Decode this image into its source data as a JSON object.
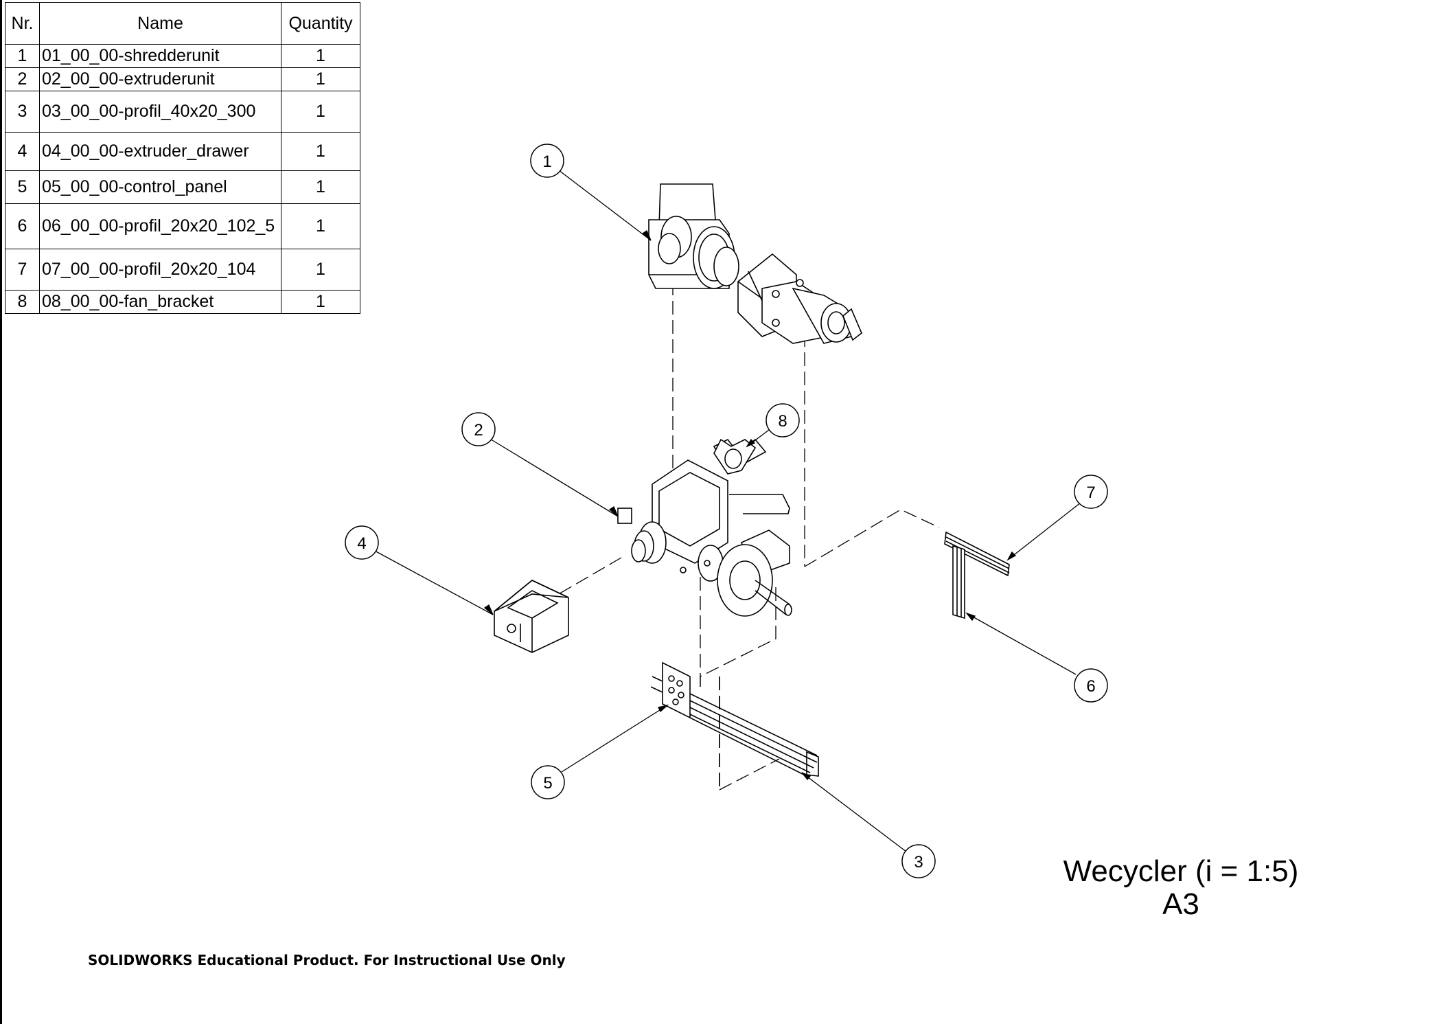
{
  "bom": {
    "headers": {
      "nr": "Nr.",
      "name": "Name",
      "quantity": "Quantity"
    },
    "rows": [
      {
        "nr": "1",
        "name": "01_00_00-shredderunit",
        "quantity": "1"
      },
      {
        "nr": "2",
        "name": "02_00_00-extruderunit",
        "quantity": "1"
      },
      {
        "nr": "3",
        "name": "03_00_00-profil_40x20_300",
        "quantity": "1"
      },
      {
        "nr": "4",
        "name": "04_00_00-extruder_drawer",
        "quantity": "1"
      },
      {
        "nr": "5",
        "name": "05_00_00-control_panel",
        "quantity": "1"
      },
      {
        "nr": "6",
        "name": "06_00_00-profil_20x20_102_5",
        "quantity": "1"
      },
      {
        "nr": "7",
        "name": "07_00_00-profil_20x20_104",
        "quantity": "1"
      },
      {
        "nr": "8",
        "name": "08_00_00-fan_bracket",
        "quantity": "1"
      }
    ]
  },
  "balloons": [
    "1",
    "2",
    "3",
    "4",
    "5",
    "6",
    "7",
    "8"
  ],
  "title": {
    "line1": "Wecycler (i = 1:5)",
    "line2": "A3"
  },
  "footer": {
    "watermark": "SOLIDWORKS Educational Product. For Instructional Use Only"
  }
}
